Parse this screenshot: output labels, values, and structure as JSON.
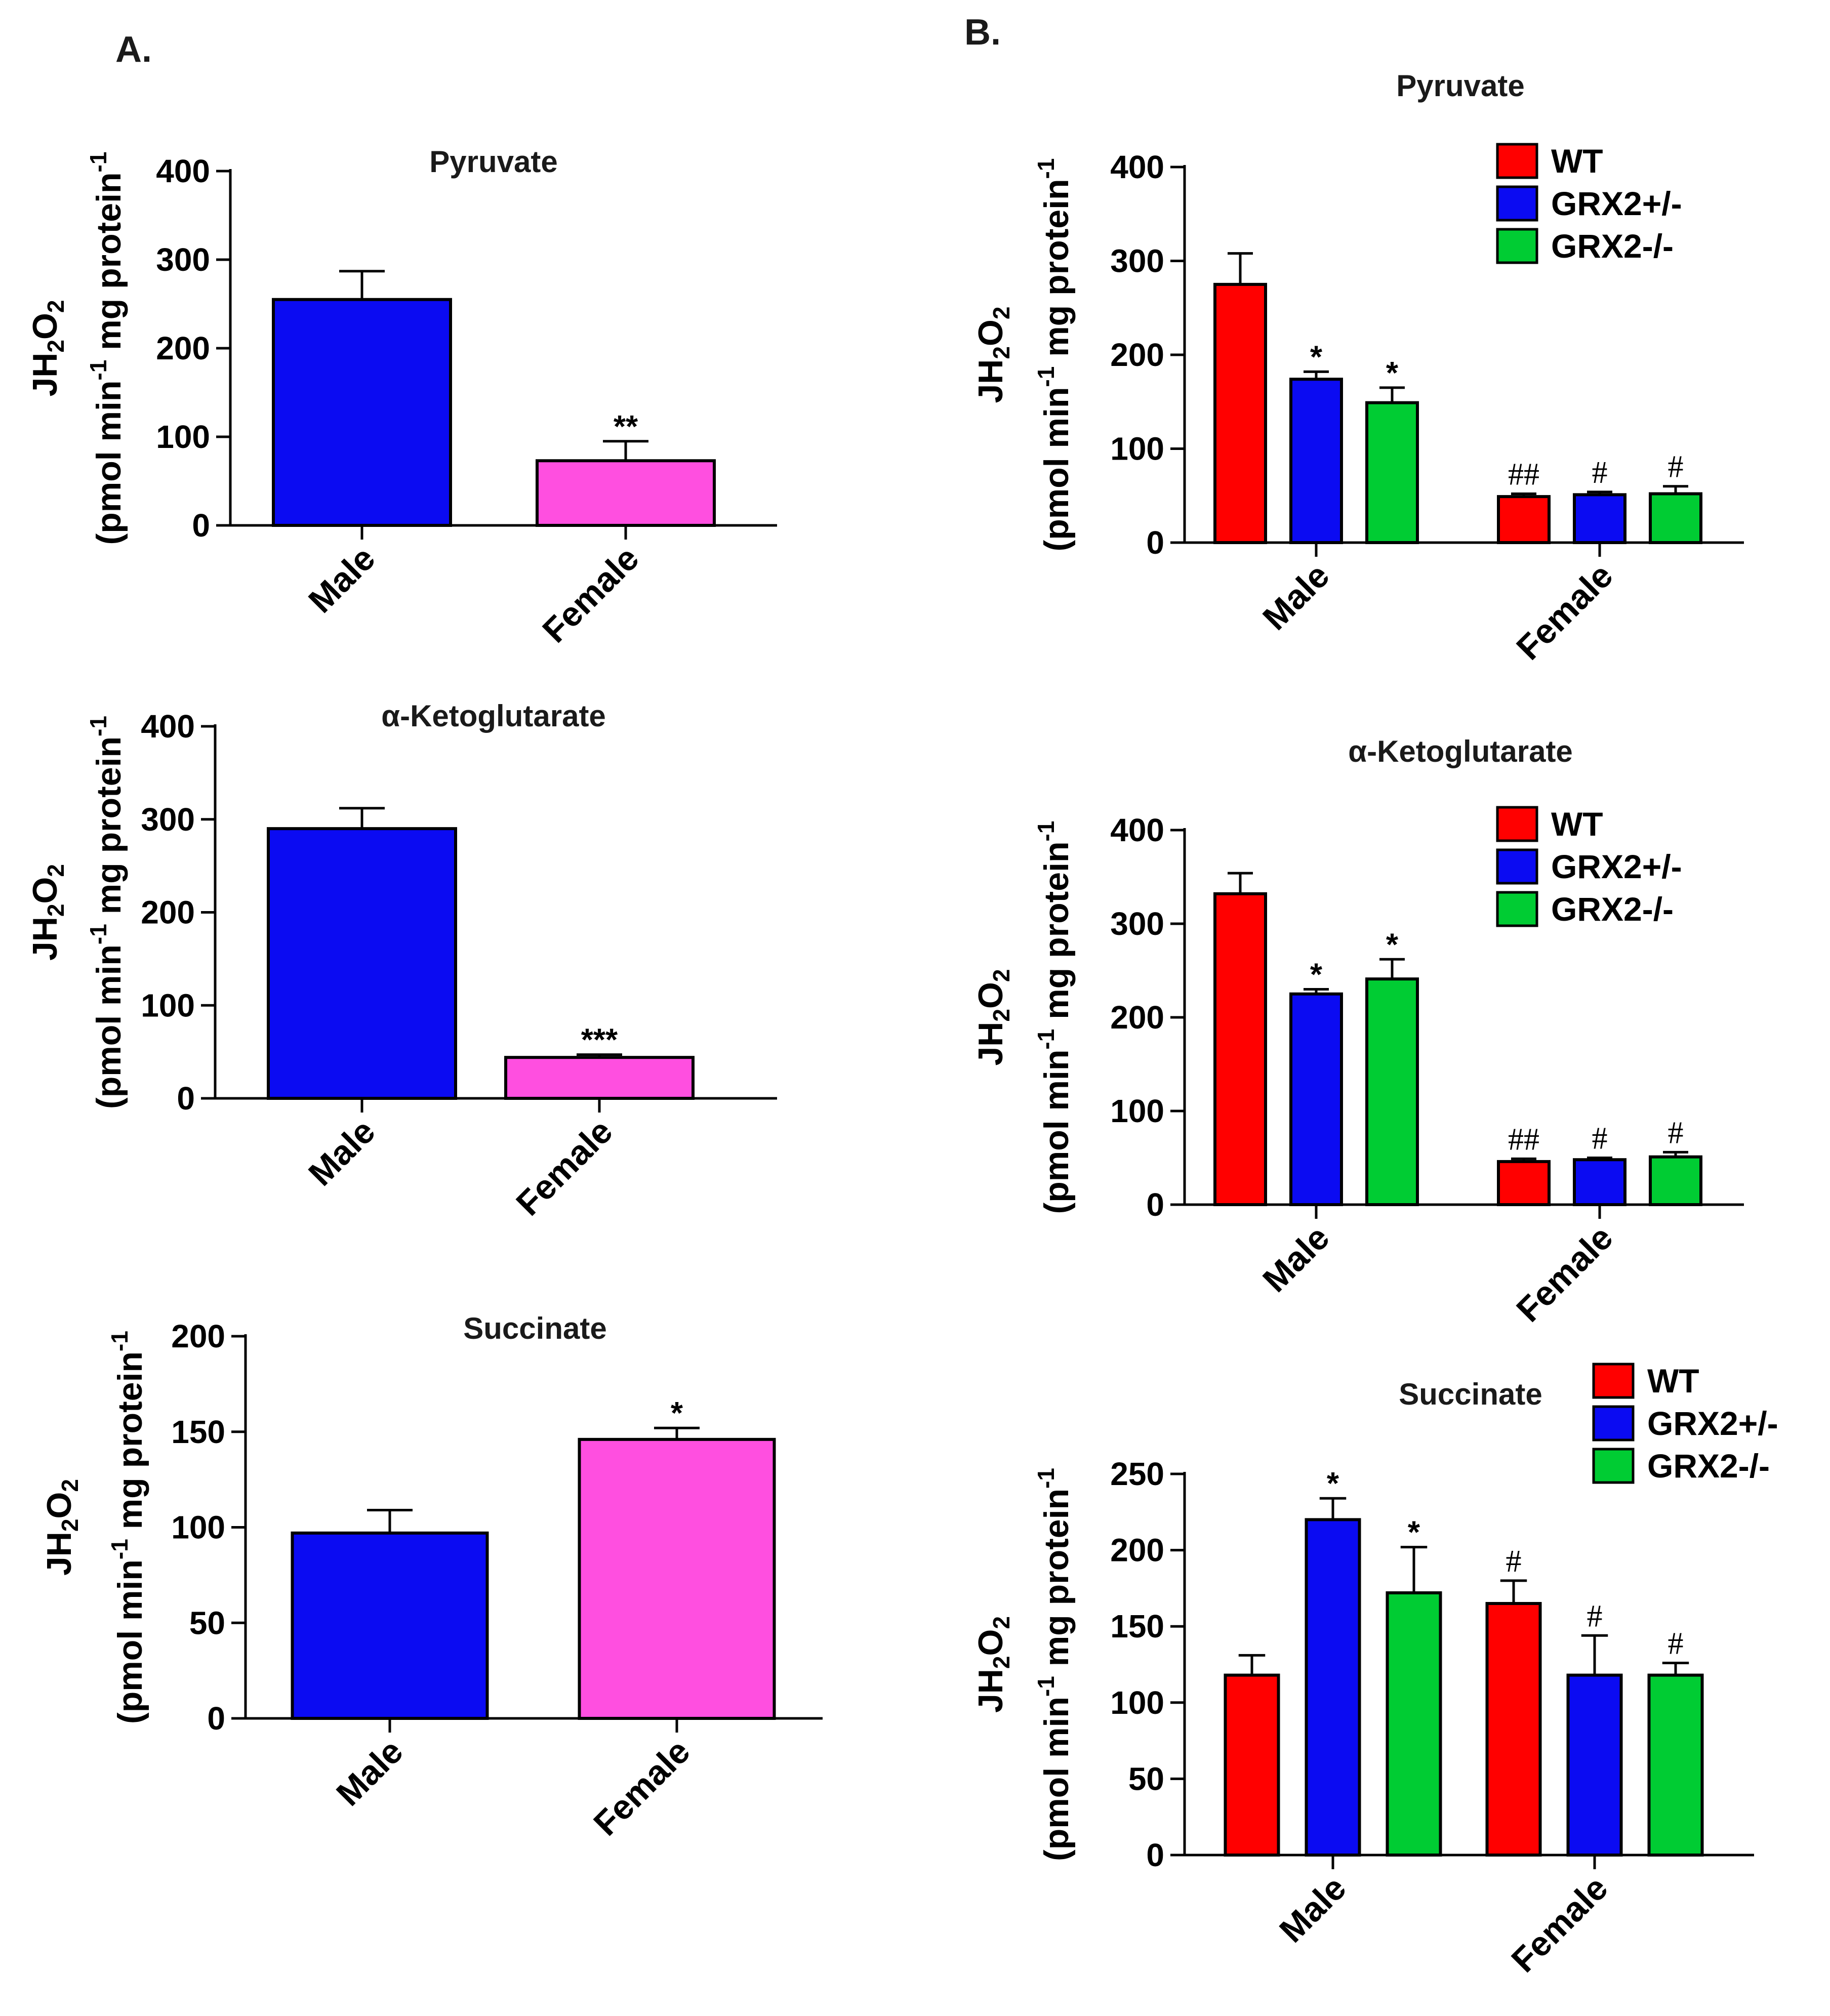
{
  "panels": {
    "a": "A.",
    "b": "B."
  },
  "colors": {
    "blue": "#0b0bf2",
    "pink": "#ff4fe0",
    "red": "#ff0000",
    "green": "#00cc33",
    "axis": "#000000"
  },
  "ylabel": {
    "line1_main": "JH",
    "line1_sub1": "2",
    "line1_mid": "O",
    "line1_sub2": "2",
    "line2_pre": "(pmol min",
    "line2_sup1": "-1",
    "line2_mid": " mg protein",
    "line2_sup2": "-1"
  },
  "chart_data": [
    {
      "id": "A1",
      "panel": "A",
      "type": "bar",
      "title": "Pyruvate",
      "categories": [
        "Male",
        "Female"
      ],
      "series": [
        {
          "name": "",
          "values": [
            255,
            73
          ],
          "errors": [
            32,
            22
          ],
          "colors": [
            "blue",
            "pink"
          ],
          "annotations": [
            "",
            "**"
          ]
        }
      ],
      "ylim": [
        0,
        400
      ],
      "yticks": [
        0,
        100,
        200,
        300,
        400
      ],
      "ylabel": "JH2O2 (pmol min-1 mg protein-1)",
      "legend": []
    },
    {
      "id": "A2",
      "panel": "A",
      "type": "bar",
      "title": "α-Ketoglutarate",
      "categories": [
        "Male",
        "Female"
      ],
      "series": [
        {
          "name": "",
          "values": [
            290,
            44
          ],
          "errors": [
            22,
            3
          ],
          "colors": [
            "blue",
            "pink"
          ],
          "annotations": [
            "",
            "***"
          ]
        }
      ],
      "ylim": [
        0,
        400
      ],
      "yticks": [
        0,
        100,
        200,
        300,
        400
      ],
      "ylabel": "JH2O2 (pmol min-1 mg protein-1)",
      "legend": []
    },
    {
      "id": "A3",
      "panel": "A",
      "type": "bar",
      "title": "Succinate",
      "categories": [
        "Male",
        "Female"
      ],
      "series": [
        {
          "name": "",
          "values": [
            97,
            146
          ],
          "errors": [
            12,
            6
          ],
          "colors": [
            "blue",
            "pink"
          ],
          "annotations": [
            "",
            "*"
          ]
        }
      ],
      "ylim": [
        0,
        200
      ],
      "yticks": [
        0,
        50,
        100,
        150,
        200
      ],
      "ylabel": "JH2O2 (pmol min-1 mg protein-1)",
      "legend": []
    },
    {
      "id": "B1",
      "panel": "B",
      "type": "bar",
      "title": "Pyruvate",
      "categories": [
        "Male",
        "Female"
      ],
      "series": [
        {
          "name": "WT",
          "values": [
            275,
            49
          ],
          "errors": [
            33,
            3
          ],
          "color": "red",
          "annotations": [
            "",
            "##"
          ]
        },
        {
          "name": "GRX2+/-",
          "values": [
            174,
            51
          ],
          "errors": [
            8,
            3
          ],
          "color": "blue",
          "annotations": [
            "*",
            "#"
          ]
        },
        {
          "name": "GRX2-/-",
          "values": [
            149,
            52
          ],
          "errors": [
            16,
            8
          ],
          "color": "green",
          "annotations": [
            "*",
            "#"
          ]
        }
      ],
      "ylim": [
        0,
        400
      ],
      "yticks": [
        0,
        100,
        200,
        300,
        400
      ],
      "ylabel": "JH2O2 (pmol min-1 mg protein-1)",
      "legend": [
        "WT",
        "GRX2+/-",
        "GRX2-/-"
      ]
    },
    {
      "id": "B2",
      "panel": "B",
      "type": "bar",
      "title": "α-Ketoglutarate",
      "categories": [
        "Male",
        "Female"
      ],
      "series": [
        {
          "name": "WT",
          "values": [
            332,
            46
          ],
          "errors": [
            22,
            3
          ],
          "color": "red",
          "annotations": [
            "",
            "##"
          ]
        },
        {
          "name": "GRX2+/-",
          "values": [
            225,
            48
          ],
          "errors": [
            5,
            2
          ],
          "color": "blue",
          "annotations": [
            "*",
            "#"
          ]
        },
        {
          "name": "GRX2-/-",
          "values": [
            241,
            51
          ],
          "errors": [
            21,
            5
          ],
          "color": "green",
          "annotations": [
            "*",
            "#"
          ]
        }
      ],
      "ylim": [
        0,
        400
      ],
      "yticks": [
        0,
        100,
        200,
        300,
        400
      ],
      "ylabel": "JH2O2 (pmol min-1 mg protein-1)",
      "legend": [
        "WT",
        "GRX2+/-",
        "GRX2-/-"
      ]
    },
    {
      "id": "B3",
      "panel": "B",
      "type": "bar",
      "title": "Succinate",
      "categories": [
        "Male",
        "Female"
      ],
      "series": [
        {
          "name": "WT",
          "values": [
            118,
            165
          ],
          "errors": [
            13,
            15
          ],
          "color": "red",
          "annotations": [
            "",
            "#"
          ]
        },
        {
          "name": "GRX2+/-",
          "values": [
            220,
            118
          ],
          "errors": [
            14,
            26
          ],
          "color": "blue",
          "annotations": [
            "*",
            "#"
          ]
        },
        {
          "name": "GRX2-/-",
          "values": [
            172,
            118
          ],
          "errors": [
            30,
            8
          ],
          "color": "green",
          "annotations": [
            "*",
            "#"
          ]
        }
      ],
      "ylim": [
        0,
        250
      ],
      "yticks": [
        0,
        50,
        100,
        150,
        200,
        250
      ],
      "ylabel": "JH2O2 (pmol min-1 mg protein-1)",
      "legend": [
        "WT",
        "GRX2+/-",
        "GRX2-/-"
      ]
    }
  ]
}
